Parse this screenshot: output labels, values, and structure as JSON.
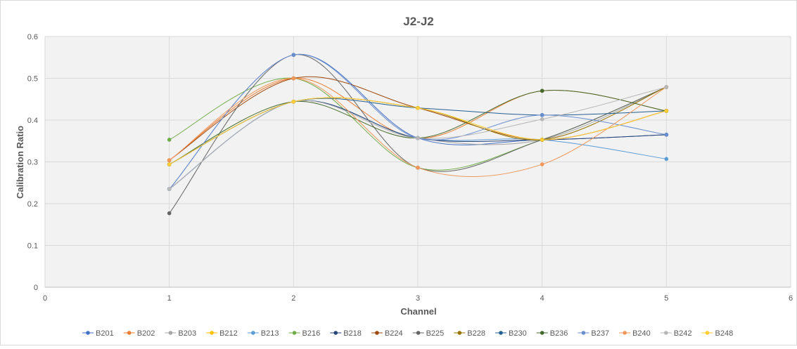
{
  "chart_data": {
    "type": "line",
    "title": "J2-J2",
    "xlabel": "Channel",
    "ylabel": "Calibration Ratio",
    "xlim": [
      0,
      6
    ],
    "ylim": [
      0,
      0.6
    ],
    "x_ticks": [
      "0",
      "1",
      "2",
      "3",
      "4",
      "5",
      "6"
    ],
    "y_ticks": [
      "0",
      "0.1",
      "0.2",
      "0.3",
      "0.4",
      "0.5",
      "0.6"
    ],
    "grid": true,
    "smoothed": true,
    "legend_position": "bottom",
    "x": [
      1,
      2,
      3,
      4,
      5
    ],
    "series": [
      {
        "name": "B201",
        "color": "#4472C4",
        "values": [
          0.235,
          0.556,
          0.357,
          0.353,
          0.365
        ]
      },
      {
        "name": "B202",
        "color": "#ED7D31",
        "values": [
          0.304,
          0.5,
          0.357,
          0.47,
          0.422
        ]
      },
      {
        "name": "B203",
        "color": "#A5A5A5",
        "values": [
          0.235,
          0.444,
          0.357,
          0.353,
          0.479
        ]
      },
      {
        "name": "B212",
        "color": "#FFC000",
        "values": [
          0.294,
          0.444,
          0.429,
          0.353,
          0.422
        ]
      },
      {
        "name": "B213",
        "color": "#5B9BD5",
        "values": [
          0.235,
          0.444,
          0.357,
          0.353,
          0.307
        ]
      },
      {
        "name": "B216",
        "color": "#70AD47",
        "values": [
          0.353,
          0.5,
          0.286,
          0.353,
          0.479
        ]
      },
      {
        "name": "B218",
        "color": "#264478",
        "values": [
          0.235,
          0.444,
          0.357,
          0.353,
          0.365
        ]
      },
      {
        "name": "B224",
        "color": "#9E480E",
        "values": [
          0.304,
          0.5,
          0.429,
          0.353,
          0.422
        ]
      },
      {
        "name": "B225",
        "color": "#636363",
        "values": [
          0.177,
          0.556,
          0.286,
          0.353,
          0.479
        ]
      },
      {
        "name": "B228",
        "color": "#997300",
        "values": [
          0.294,
          0.444,
          0.429,
          0.353,
          0.479
        ]
      },
      {
        "name": "B230",
        "color": "#255E91",
        "values": [
          0.294,
          0.444,
          0.429,
          0.412,
          0.422
        ]
      },
      {
        "name": "B236",
        "color": "#43682B",
        "values": [
          0.294,
          0.444,
          0.357,
          0.47,
          0.422
        ]
      },
      {
        "name": "B237",
        "color": "#698ED0",
        "values": [
          0.235,
          0.556,
          0.357,
          0.412,
          0.365
        ]
      },
      {
        "name": "B240",
        "color": "#F1975A",
        "values": [
          0.304,
          0.5,
          0.286,
          0.294,
          0.479
        ]
      },
      {
        "name": "B242",
        "color": "#B7B7B7",
        "values": [
          0.235,
          0.444,
          0.357,
          0.402,
          0.479
        ]
      },
      {
        "name": "B248",
        "color": "#FFCD33",
        "values": [
          0.294,
          0.444,
          0.429,
          0.353,
          0.422
        ]
      }
    ]
  }
}
